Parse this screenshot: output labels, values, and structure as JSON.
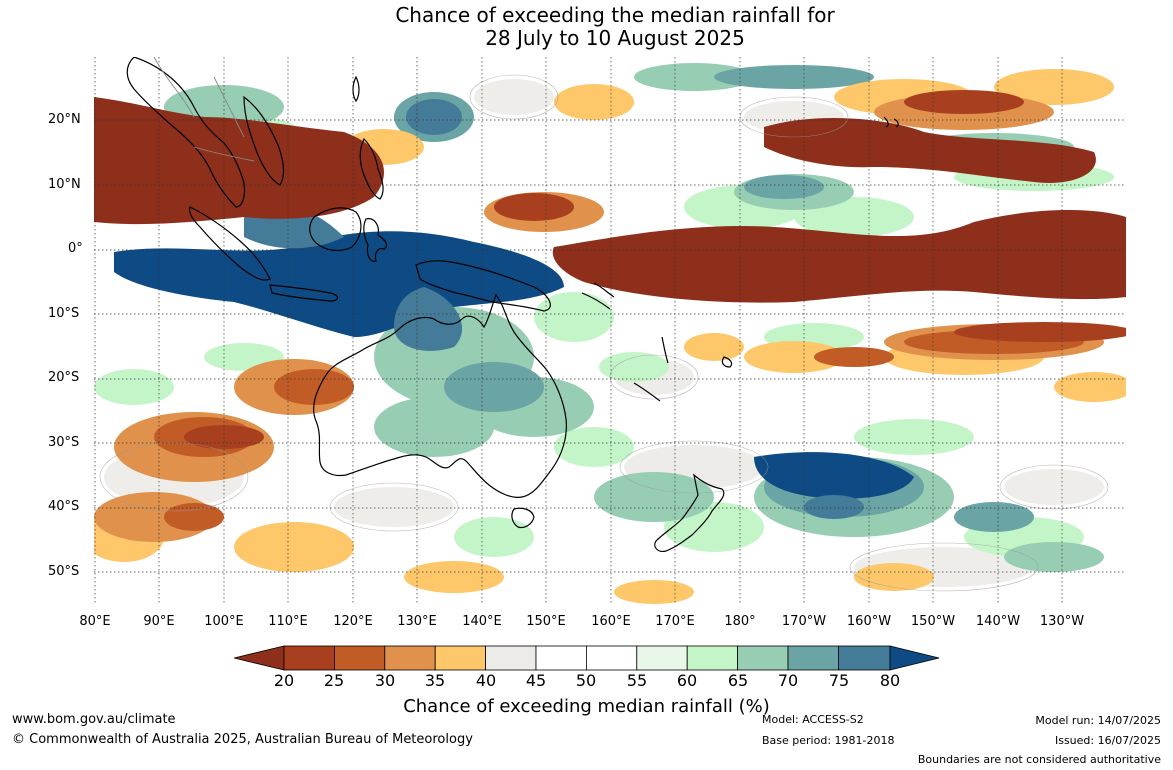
{
  "map": {
    "title_line1": "Chance of exceeding the median rainfall for",
    "title_line2": "28 July to 10 August 2025",
    "lat_labels": [
      "20°N",
      "10°N",
      "0°",
      "10°S",
      "20°S",
      "30°S",
      "40°S",
      "50°S"
    ],
    "lon_labels": [
      "80°E",
      "90°E",
      "100°E",
      "110°E",
      "120°E",
      "130°E",
      "140°E",
      "150°E",
      "160°E",
      "170°E",
      "180°",
      "170°W",
      "160°W",
      "150°W",
      "140°W",
      "130°W"
    ],
    "colorbar": {
      "ticks": [
        "20",
        "25",
        "30",
        "35",
        "40",
        "45",
        "50",
        "55",
        "60",
        "65",
        "70",
        "75",
        "80"
      ],
      "colors": [
        "#8e2f1c",
        "#a8401f",
        "#c25c26",
        "#e0914b",
        "#fdc76a",
        "#ecebe7",
        "#ffffff",
        "#ffffff",
        "#e9f7e8",
        "#c4f5c8",
        "#96cdb3",
        "#6aa4a4",
        "#447b98",
        "#0e4b84"
      ],
      "label": "Chance of exceeding median rainfall (%)"
    }
  },
  "footer": {
    "website": "www.bom.gov.au/climate",
    "copyright": "© Commonwealth of Australia 2025, Australian Bureau of Meteorology",
    "model": "Model: ACCESS-S2",
    "base_period": "Base period: 1981-2018",
    "model_run": "Model run: 14/07/2025",
    "issued": "Issued: 16/07/2025",
    "boundaries": "Boundaries are not considered authoritative"
  }
}
